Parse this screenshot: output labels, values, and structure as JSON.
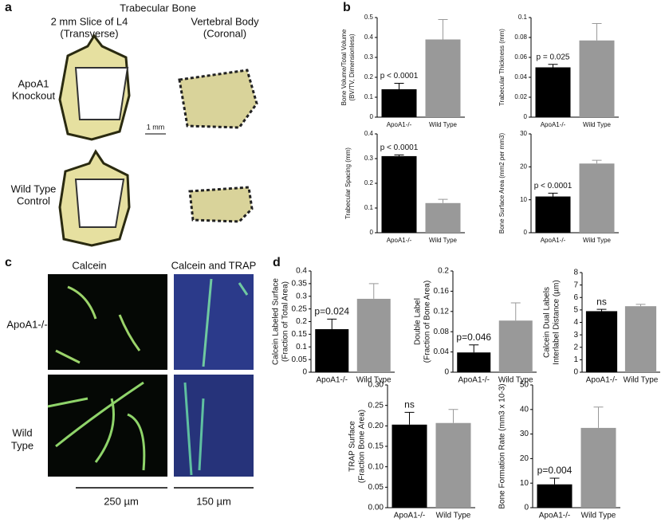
{
  "chart_data": [
    {
      "type": "bar",
      "ylabel": [
        "Bone Volume/Total Volume",
        "(BV/TV, Dimensionless)"
      ],
      "categories": [
        "ApoA1-/-",
        "Wild Type"
      ],
      "values": [
        0.14,
        0.39
      ],
      "errors": [
        0.03,
        0.1
      ],
      "colors": [
        "#000000",
        "#999999"
      ],
      "annotation": "p < 0.0001",
      "ylim": [
        0,
        0.5
      ],
      "yticks": [
        0,
        0.1,
        0.2,
        0.3,
        0.4,
        0.5
      ]
    },
    {
      "type": "bar",
      "ylabel": [
        "Trabecular Thickness (mm)"
      ],
      "categories": [
        "ApoA1-/-",
        "Wild Type"
      ],
      "values": [
        0.05,
        0.077
      ],
      "errors": [
        0.003,
        0.017
      ],
      "colors": [
        "#000000",
        "#999999"
      ],
      "annotation": "p = 0.025",
      "ylim": [
        0,
        0.1
      ],
      "yticks": [
        0,
        0.02,
        0.04,
        0.06,
        0.08,
        0.1
      ]
    },
    {
      "type": "bar",
      "ylabel": [
        "Trabecular Spacing (mm)"
      ],
      "categories": [
        "ApoA1-/-",
        "Wild Type"
      ],
      "values": [
        0.31,
        0.12
      ],
      "errors": [
        0.005,
        0.015
      ],
      "colors": [
        "#000000",
        "#999999"
      ],
      "annotation": "p < 0.0001",
      "ylim": [
        0,
        0.4
      ],
      "yticks": [
        0,
        0.1,
        0.2,
        0.3,
        0.4
      ]
    },
    {
      "type": "bar",
      "ylabel": [
        "Bone Surface Area (mm2 per mm3)"
      ],
      "categories": [
        "ApoA1-/-",
        "Wild Type"
      ],
      "values": [
        11,
        21
      ],
      "errors": [
        1,
        1
      ],
      "colors": [
        "#000000",
        "#999999"
      ],
      "annotation": "p < 0.0001",
      "ylim": [
        0,
        30
      ],
      "yticks": [
        0,
        10,
        20,
        30
      ]
    },
    {
      "type": "bar",
      "ylabel": [
        "Calcein Labeled Surface",
        "(Fraction of Total Area)"
      ],
      "categories": [
        "ApoA1-/-",
        "Wild Type"
      ],
      "values": [
        0.17,
        0.29
      ],
      "errors": [
        0.04,
        0.06
      ],
      "colors": [
        "#000000",
        "#999999"
      ],
      "annotation": "p=0.024",
      "ylim": [
        0,
        0.4
      ],
      "yticks": [
        0,
        0.05,
        0.1,
        0.15,
        0.2,
        0.25,
        0.3,
        0.35,
        0.4
      ]
    },
    {
      "type": "bar",
      "ylabel": [
        "Double Label",
        "(Fraction of Bone Area)"
      ],
      "categories": [
        "ApoA1-/-",
        "Wild Type"
      ],
      "values": [
        0.039,
        0.102
      ],
      "errors": [
        0.015,
        0.035
      ],
      "colors": [
        "#000000",
        "#999999"
      ],
      "annotation": "p=0.046",
      "ylim": [
        0,
        0.2
      ],
      "yticks": [
        0,
        0.04,
        0.08,
        0.12,
        0.16,
        0.2
      ]
    },
    {
      "type": "bar",
      "ylabel": [
        "Calcein Dual Labels",
        "Interlabel Distance (µm)"
      ],
      "categories": [
        "ApoA1-/-",
        "Wild Type"
      ],
      "values": [
        4.9,
        5.3
      ],
      "errors": [
        0.15,
        0.15
      ],
      "colors": [
        "#000000",
        "#999999"
      ],
      "annotation": "ns",
      "ylim": [
        0,
        8
      ],
      "yticks": [
        0,
        1,
        2,
        3,
        4,
        5,
        6,
        7,
        8
      ]
    },
    {
      "type": "bar",
      "ylabel": [
        "TRAP Surface",
        "(Fraction Bone Area)"
      ],
      "categories": [
        "ApoA1-/-",
        "Wild Type"
      ],
      "values": [
        0.203,
        0.207
      ],
      "errors": [
        0.03,
        0.033
      ],
      "colors": [
        "#000000",
        "#999999"
      ],
      "annotation": "ns",
      "ylim": [
        0,
        0.3
      ],
      "yticks": [
        {
          "value": 0,
          "label": "0.00"
        },
        {
          "value": 0.05,
          "label": "0.05"
        },
        {
          "value": 0.1,
          "label": "0.10"
        },
        {
          "value": 0.15,
          "label": "0.15"
        },
        {
          "value": 0.2,
          "label": "0.20"
        },
        {
          "value": 0.25,
          "label": "0.25"
        },
        {
          "value": 0.3,
          "label": "0.30"
        }
      ]
    },
    {
      "type": "bar",
      "ylabel": [
        "Bone Formation Rate (mm3 x 10-3)"
      ],
      "categories": [
        "ApoA1-/-",
        "Wild Type"
      ],
      "values": [
        9.5,
        32.5
      ],
      "errors": [
        2.5,
        8.5
      ],
      "colors": [
        "#000000",
        "#999999"
      ],
      "annotation": "p=0.004",
      "ylim": [
        0,
        50
      ],
      "yticks": [
        0,
        10,
        20,
        30,
        40,
        50
      ]
    }
  ],
  "panels": {
    "a": {
      "label": "a",
      "title": "Trabecular Bone",
      "col1": [
        "2 mm Slice of L4",
        "(Transverse)"
      ],
      "col2": [
        "Vertebral Body",
        "(Coronal)"
      ],
      "row1": [
        "ApoA1",
        "Knockout"
      ],
      "row2": [
        "Wild Type",
        "Control"
      ],
      "scale": "1 mm"
    },
    "b": {
      "label": "b"
    },
    "c": {
      "label": "c",
      "col1": "Calcein",
      "col2": "Calcein and TRAP",
      "row1": "ApoA1-/-",
      "row2": [
        "Wild",
        "Type"
      ],
      "scale1": "250 µm",
      "scale2": "150 µm"
    },
    "d": {
      "label": "d"
    }
  }
}
